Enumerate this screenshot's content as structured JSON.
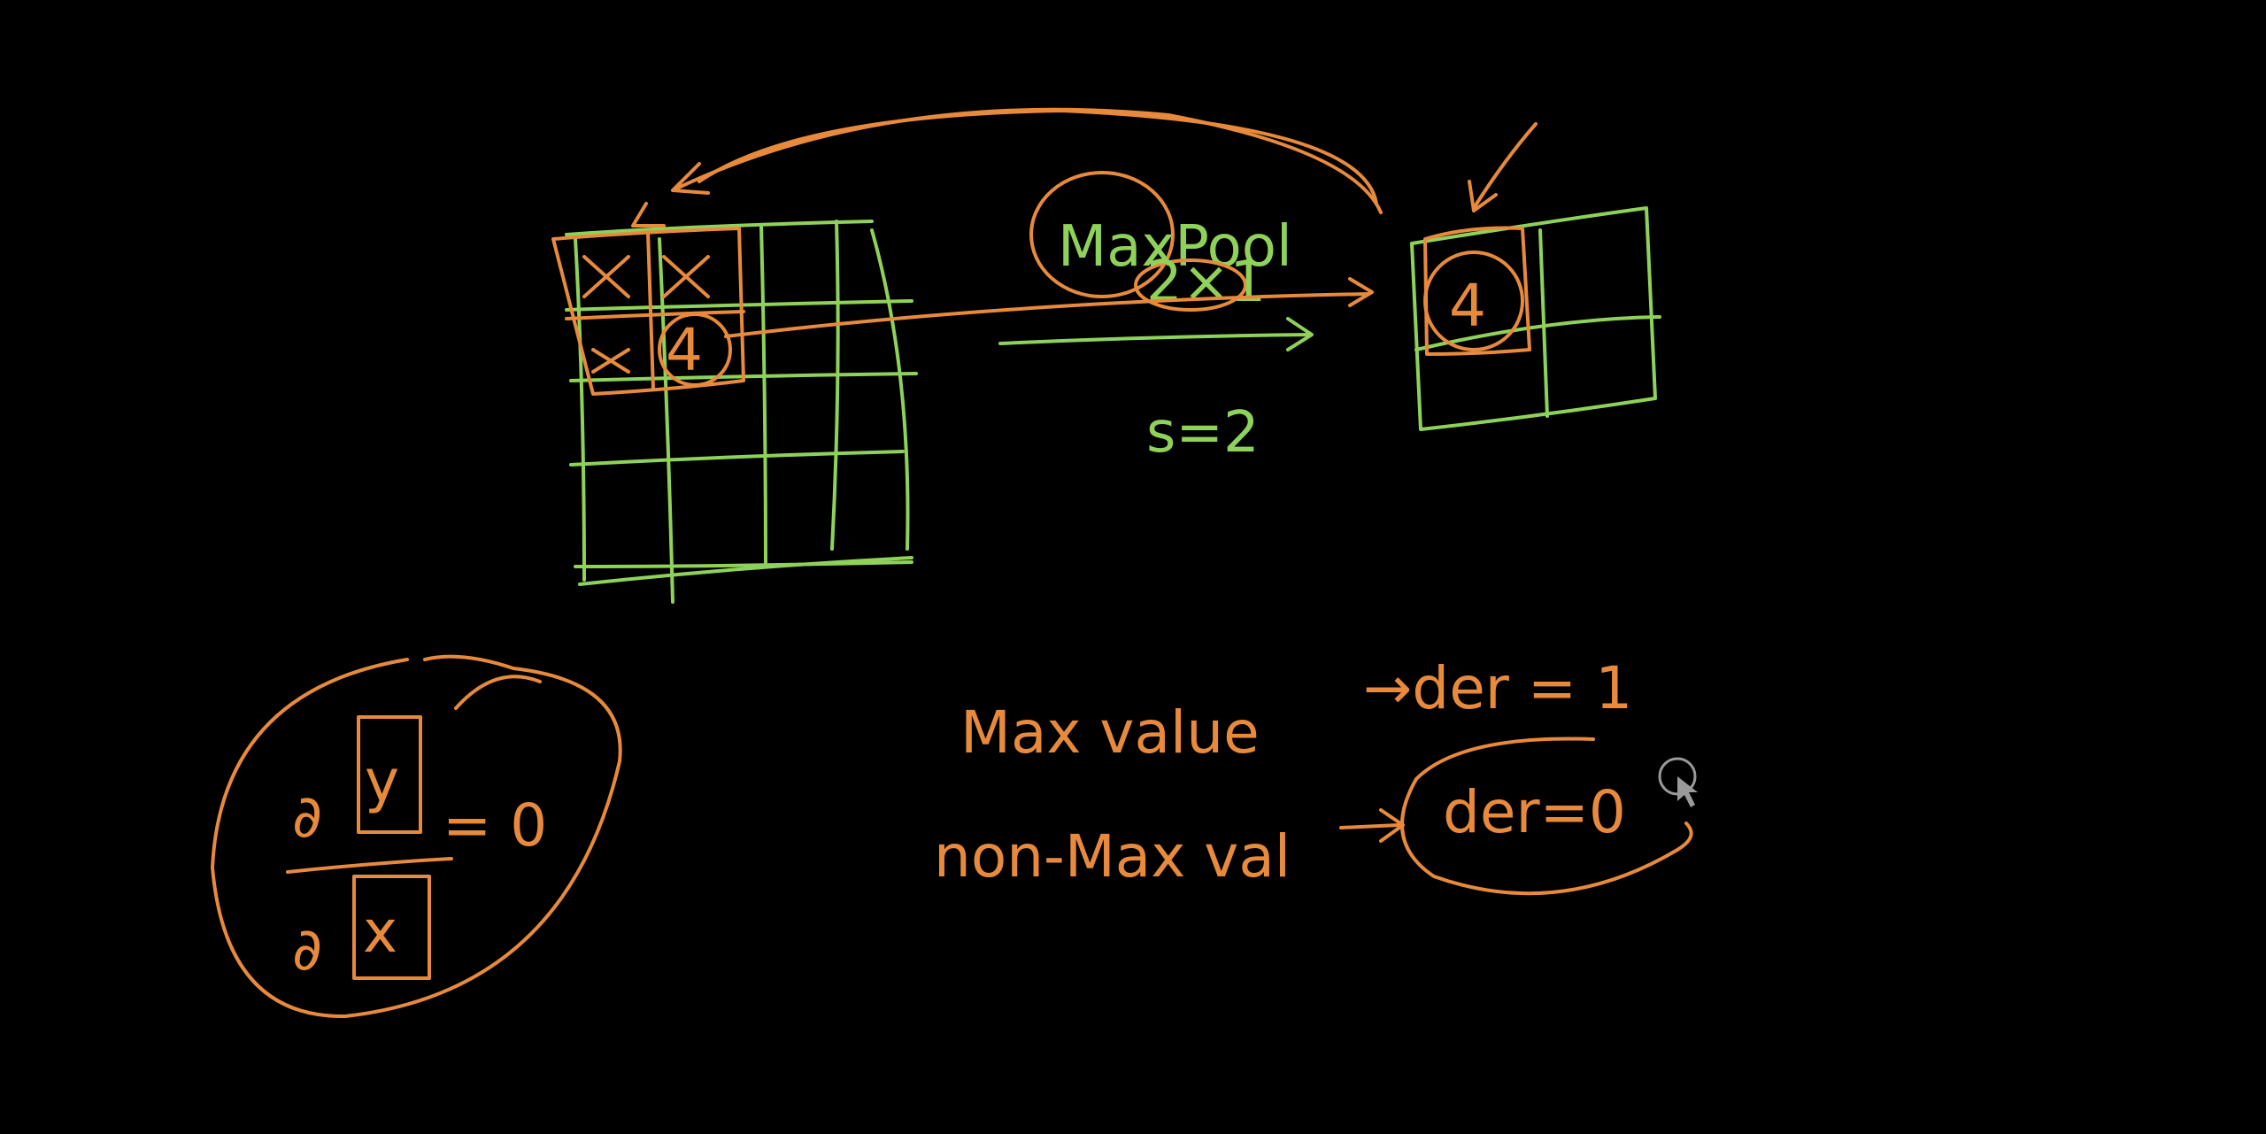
{
  "colors": {
    "background": "#000000",
    "green_ink": "#8fd25a",
    "orange_ink": "#e88a3c",
    "cursor": "#9a9a9a"
  },
  "labels": {
    "maxpool": "MaxPool",
    "pool_size": "2×1",
    "stride": "s=2",
    "output_value": "4",
    "input_max_value": "4",
    "max_value_text": "Max value",
    "max_value_result": "→der = 1",
    "non_max_text": "non-Max val",
    "non_max_result": "der=0",
    "derivative_numerator": "∂",
    "derivative_numerator_var": "y",
    "derivative_denominator": "∂",
    "derivative_denominator_var": "x",
    "derivative_result": "= 0"
  },
  "icons": {
    "cursor": "pen-cursor-icon"
  }
}
